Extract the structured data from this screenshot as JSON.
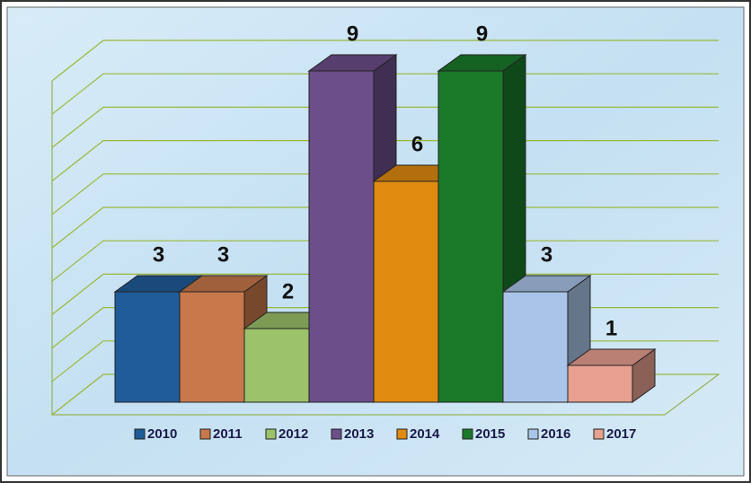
{
  "chart_data": {
    "type": "bar3d",
    "series": [
      {
        "name": "2010",
        "color": "#1f5c99",
        "values": [
          3
        ]
      },
      {
        "name": "2011",
        "color": "#c8784a",
        "values": [
          3
        ]
      },
      {
        "name": "2012",
        "color": "#9cc26a",
        "values": [
          2
        ]
      },
      {
        "name": "2013",
        "color": "#6b4e8a",
        "values": [
          9
        ]
      },
      {
        "name": "2014",
        "color": "#e08a10",
        "values": [
          6
        ]
      },
      {
        "name": "2015",
        "color": "#1a7a2a",
        "values": [
          9
        ]
      },
      {
        "name": "2016",
        "color": "#a9c4e8",
        "values": [
          3
        ]
      },
      {
        "name": "2017",
        "color": "#e8a090",
        "values": [
          1
        ]
      }
    ],
    "ylim": [
      0,
      10
    ],
    "yticks": [
      0,
      1,
      2,
      3,
      4,
      5,
      6,
      7,
      8,
      9,
      10
    ],
    "grid": true,
    "legend": "bottom"
  }
}
